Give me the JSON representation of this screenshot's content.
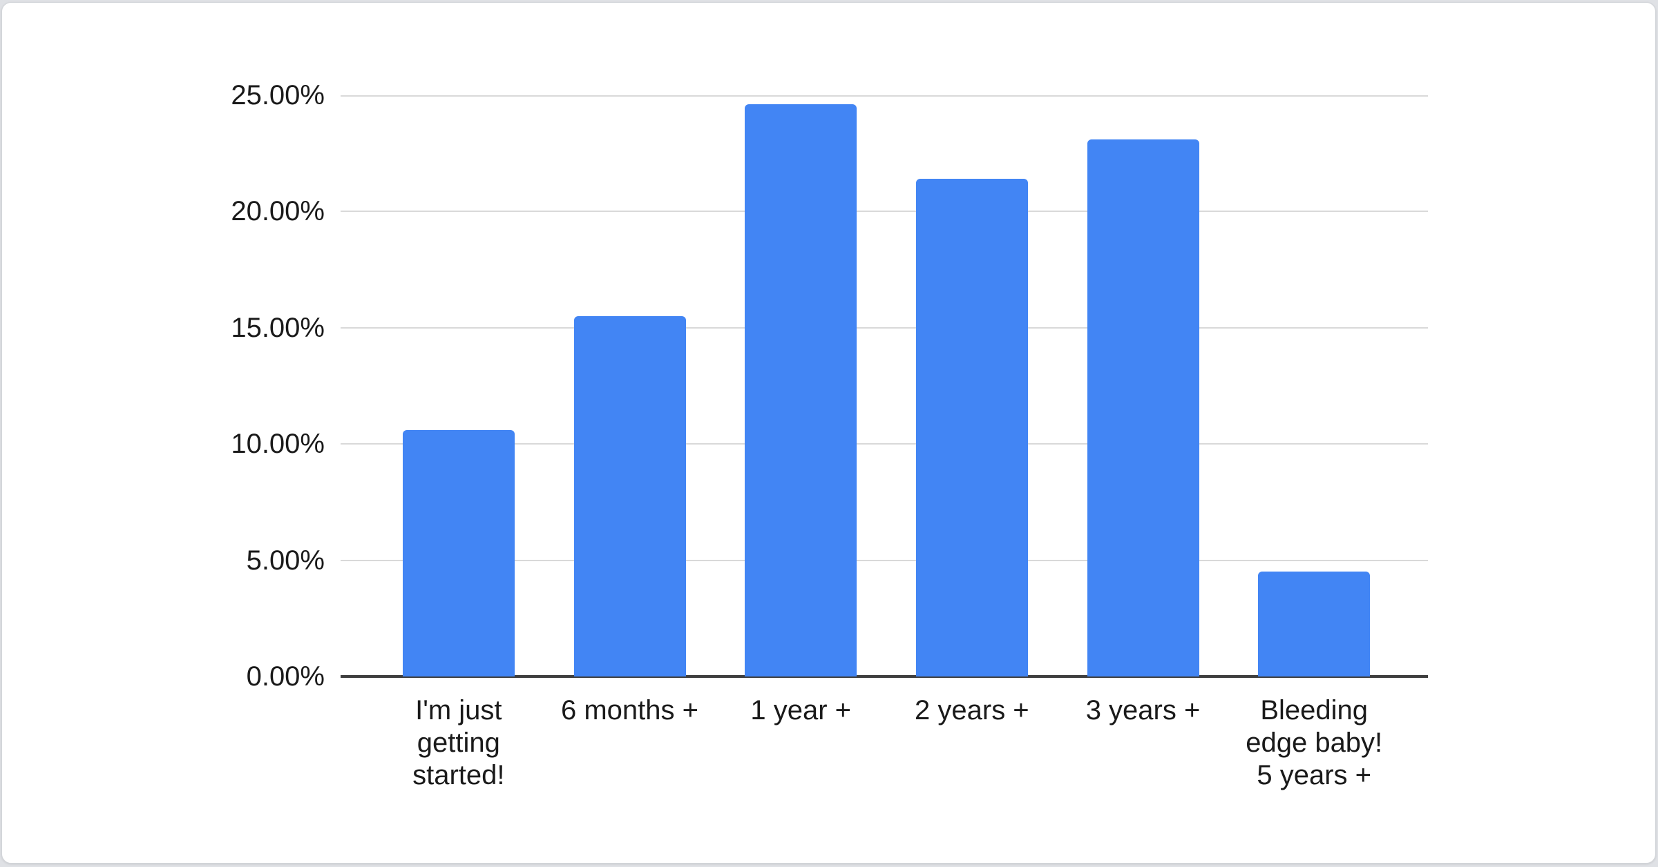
{
  "chart_data": {
    "type": "bar",
    "title": "",
    "categories": [
      "I'm just getting started!",
      "6 months +",
      "1 year +",
      "2 years +",
      "3 years +",
      "Bleeding edge baby! 5 years +"
    ],
    "category_lines": [
      [
        "I'm just",
        "getting",
        "started!"
      ],
      [
        "6 months +"
      ],
      [
        "1 year +"
      ],
      [
        "2 years +"
      ],
      [
        "3 years +"
      ],
      [
        "Bleeding",
        "edge baby!",
        "5 years +"
      ]
    ],
    "values": [
      10.6,
      15.5,
      24.6,
      21.4,
      23.1,
      4.5
    ],
    "value_unit": "%",
    "y_ticks": [
      "25.00%",
      "20.00%",
      "15.00%",
      "10.00%",
      "5.00%",
      "0.00%"
    ],
    "ylim": [
      0,
      25
    ],
    "grid": true,
    "legend": "none",
    "xlabel": "",
    "ylabel": "",
    "bar_color": "#4285f4",
    "gridline_color": "#d9d9d9",
    "axis_color": "#3e3e3e",
    "label_color": "#1a1a1a",
    "card_background": "#ffffff"
  }
}
